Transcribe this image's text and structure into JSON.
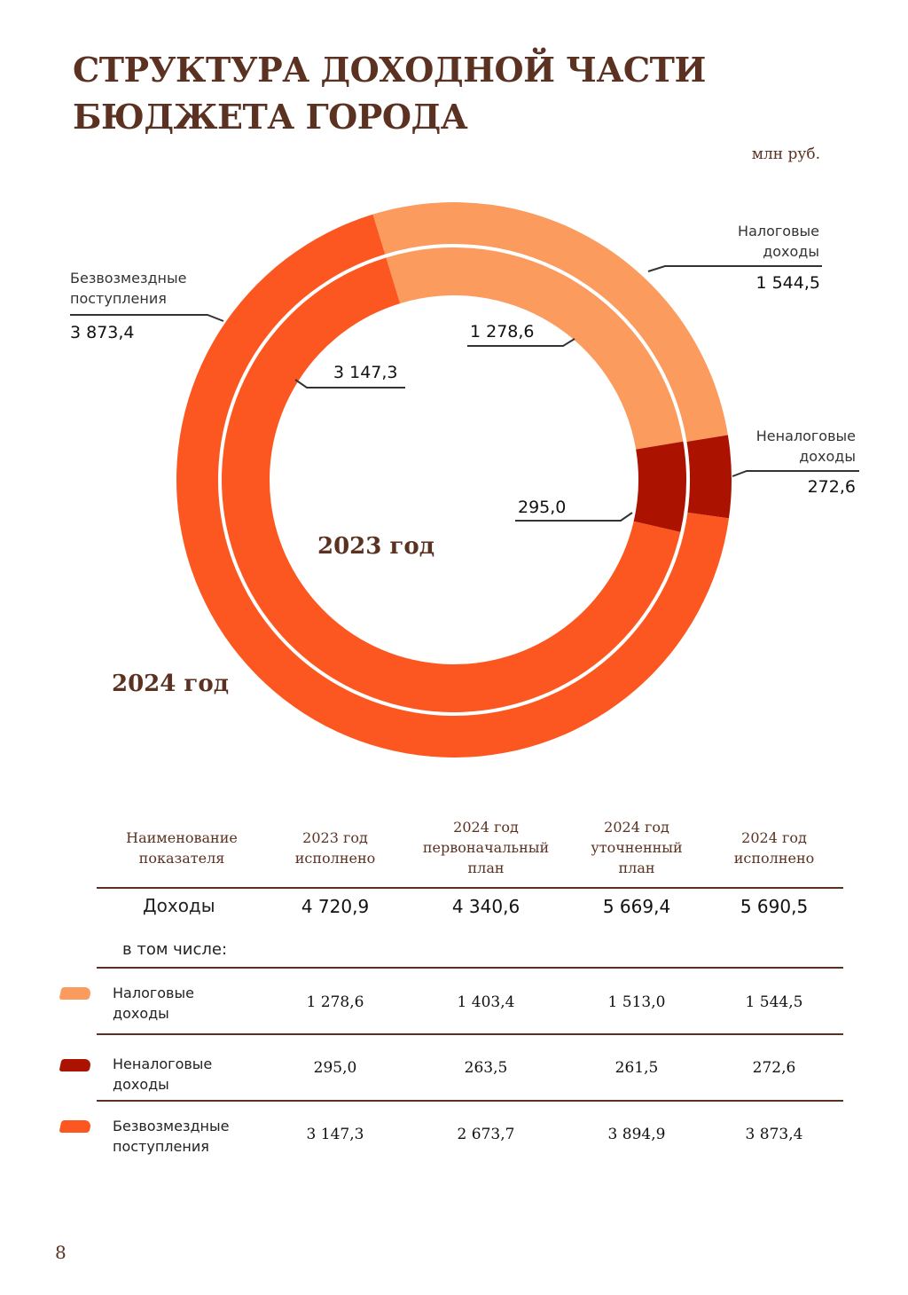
{
  "title": {
    "line1": "СТРУКТУРА ДОХОДНОЙ ЧАСТИ",
    "line2": "БЮДЖЕТА ГОРОДА"
  },
  "unit": "млн руб.",
  "chart_data": {
    "type": "donut",
    "series": [
      {
        "name": "2024 год",
        "ring": "outer",
        "values": [
          1544.5,
          272.6,
          3873.4
        ]
      },
      {
        "name": "2023 год",
        "ring": "inner",
        "values": [
          1278.6,
          295.0,
          3147.3
        ]
      }
    ],
    "categories": [
      "Налоговые доходы",
      "Неналоговые доходы",
      "Безвозмездные поступления"
    ],
    "colors": [
      "#fb9b5e",
      "#ab1300",
      "#fd5721"
    ],
    "labels": {
      "outer": [
        "1 544,5",
        "272,6",
        "3 873,4"
      ],
      "inner": [
        "1 278,6",
        "295,0",
        "3 147,3"
      ]
    },
    "category_labels": {
      "tax": {
        "line1": "Налоговые",
        "line2": "доходы"
      },
      "nontax": {
        "line1": "Неналоговые",
        "line2": "доходы"
      },
      "grants": {
        "line1": "Безвозмездные",
        "line2": "поступления"
      }
    },
    "center_label": "2023 год",
    "outer_label": "2024 год"
  },
  "table": {
    "headers": [
      {
        "line1": "Наименование",
        "line2": "показателя"
      },
      {
        "line1": "2023 год",
        "line2": "исполнено"
      },
      {
        "line1": "2024 год",
        "line2": "первоначальный",
        "line3": "план"
      },
      {
        "line1": "2024 год",
        "line2": "уточненный",
        "line3": "план"
      },
      {
        "line1": "2024 год",
        "line2": "исполнено"
      }
    ],
    "total": {
      "name": "Доходы",
      "values": [
        "4 720,9",
        "4 340,6",
        "5 669,4",
        "5 690,5"
      ]
    },
    "including": "в том числе:",
    "rows": [
      {
        "name1": "Налоговые",
        "name2": "доходы",
        "values": [
          "1 278,6",
          "1 403,4",
          "1 513,0",
          "1 544,5"
        ]
      },
      {
        "name1": "Неналоговые",
        "name2": "доходы",
        "values": [
          "295,0",
          "263,5",
          "261,5",
          "272,6"
        ]
      },
      {
        "name1": "Безвозмездные",
        "name2": "поступления",
        "values": [
          "3 147,3",
          "2 673,7",
          "3 894,9",
          "3 873,4"
        ]
      }
    ]
  },
  "page_number": "8"
}
